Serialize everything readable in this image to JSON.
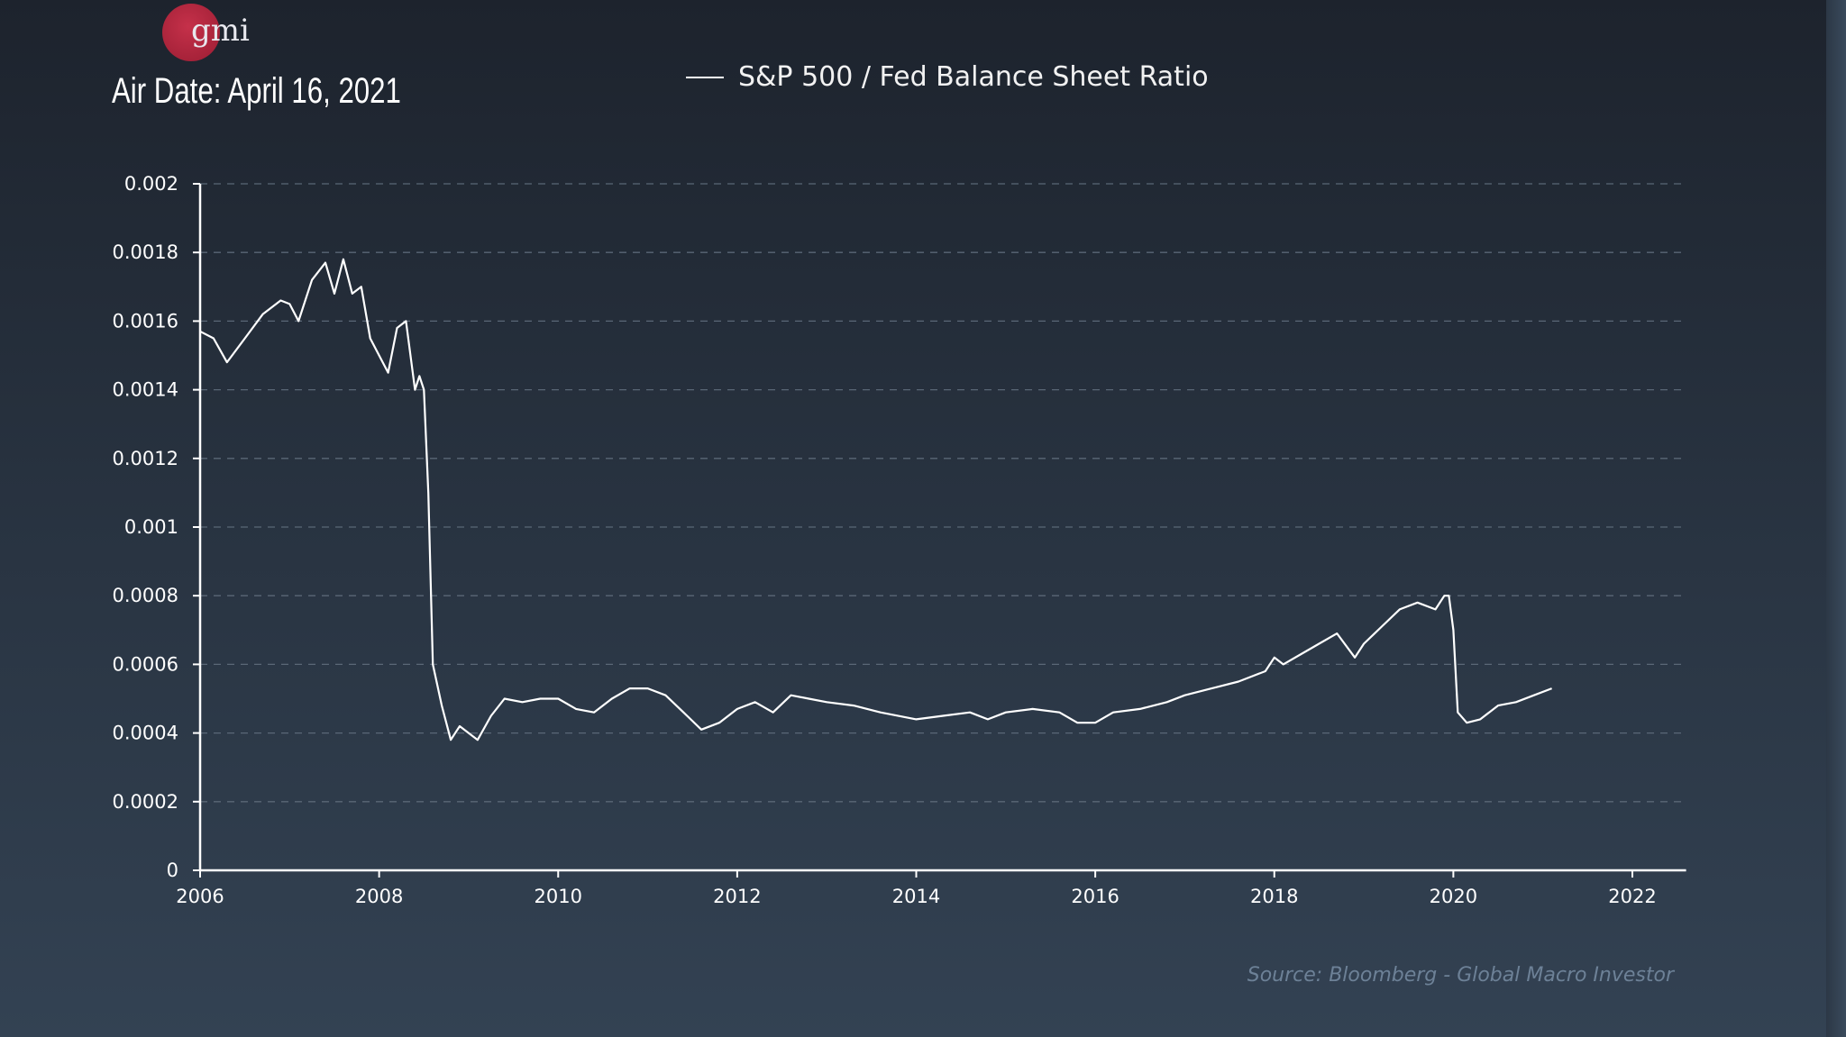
{
  "header": {
    "air_date": "Air Date: April 16, 2021",
    "logo_text": "gmi"
  },
  "footer": {
    "source": "Source: Bloomberg - Global Macro Investor"
  },
  "colors": {
    "line": "#ffffff",
    "background_top": "#1d232d",
    "background_bottom": "#334253",
    "logo": "#c8253f",
    "source_text": "#6d8197"
  },
  "chart_data": {
    "type": "line",
    "title": "",
    "xlabel": "",
    "ylabel": "",
    "legend": {
      "position": "top-center",
      "entries": [
        "S&P 500 / Fed Balance Sheet Ratio"
      ]
    },
    "xlim": [
      2006,
      2022.6
    ],
    "ylim": [
      0,
      0.002
    ],
    "grid": "horizontal dashed",
    "x_ticks": [
      "2006",
      "2008",
      "2010",
      "2012",
      "2014",
      "2016",
      "2018",
      "2020",
      "2022"
    ],
    "y_ticks": [
      "0",
      "0.0002",
      "0.0004",
      "0.0006",
      "0.0008",
      "0.001",
      "0.0012",
      "0.0014",
      "0.0016",
      "0.0018",
      "0.002"
    ],
    "series": [
      {
        "name": "S&P 500 / Fed Balance Sheet Ratio",
        "x": [
          2006.0,
          2006.15,
          2006.3,
          2006.5,
          2006.7,
          2006.9,
          2007.0,
          2007.1,
          2007.25,
          2007.4,
          2007.5,
          2007.6,
          2007.7,
          2007.8,
          2007.9,
          2008.0,
          2008.1,
          2008.2,
          2008.3,
          2008.4,
          2008.45,
          2008.5,
          2008.55,
          2008.6,
          2008.7,
          2008.8,
          2008.9,
          2009.0,
          2009.1,
          2009.25,
          2009.4,
          2009.6,
          2009.8,
          2010.0,
          2010.2,
          2010.4,
          2010.6,
          2010.8,
          2011.0,
          2011.2,
          2011.4,
          2011.6,
          2011.8,
          2012.0,
          2012.2,
          2012.4,
          2012.6,
          2012.8,
          2013.0,
          2013.3,
          2013.6,
          2014.0,
          2014.3,
          2014.6,
          2014.8,
          2015.0,
          2015.3,
          2015.6,
          2015.8,
          2016.0,
          2016.2,
          2016.5,
          2016.8,
          2017.0,
          2017.3,
          2017.6,
          2017.9,
          2018.0,
          2018.1,
          2018.3,
          2018.5,
          2018.7,
          2018.9,
          2019.0,
          2019.2,
          2019.4,
          2019.6,
          2019.8,
          2019.9,
          2019.95,
          2020.0,
          2020.05,
          2020.15,
          2020.3,
          2020.5,
          2020.7,
          2020.9,
          2021.1
        ],
        "values": [
          0.00157,
          0.00155,
          0.00148,
          0.00155,
          0.00162,
          0.00166,
          0.00165,
          0.0016,
          0.00172,
          0.00177,
          0.00168,
          0.00178,
          0.00168,
          0.0017,
          0.00155,
          0.0015,
          0.00145,
          0.00158,
          0.0016,
          0.0014,
          0.00144,
          0.0014,
          0.0011,
          0.0006,
          0.00048,
          0.00038,
          0.00042,
          0.0004,
          0.00038,
          0.00045,
          0.0005,
          0.00049,
          0.0005,
          0.0005,
          0.00047,
          0.00046,
          0.0005,
          0.00053,
          0.00053,
          0.00051,
          0.00046,
          0.00041,
          0.00043,
          0.00047,
          0.00049,
          0.00046,
          0.00051,
          0.0005,
          0.00049,
          0.00048,
          0.00046,
          0.00044,
          0.00045,
          0.00046,
          0.00044,
          0.00046,
          0.00047,
          0.00046,
          0.00043,
          0.00043,
          0.00046,
          0.00047,
          0.00049,
          0.00051,
          0.00053,
          0.00055,
          0.00058,
          0.00062,
          0.0006,
          0.00063,
          0.00066,
          0.00069,
          0.00062,
          0.00066,
          0.00071,
          0.00076,
          0.00078,
          0.00076,
          0.0008,
          0.0008,
          0.0007,
          0.00046,
          0.00043,
          0.00044,
          0.00048,
          0.00049,
          0.00051,
          0.00053
        ]
      }
    ]
  }
}
